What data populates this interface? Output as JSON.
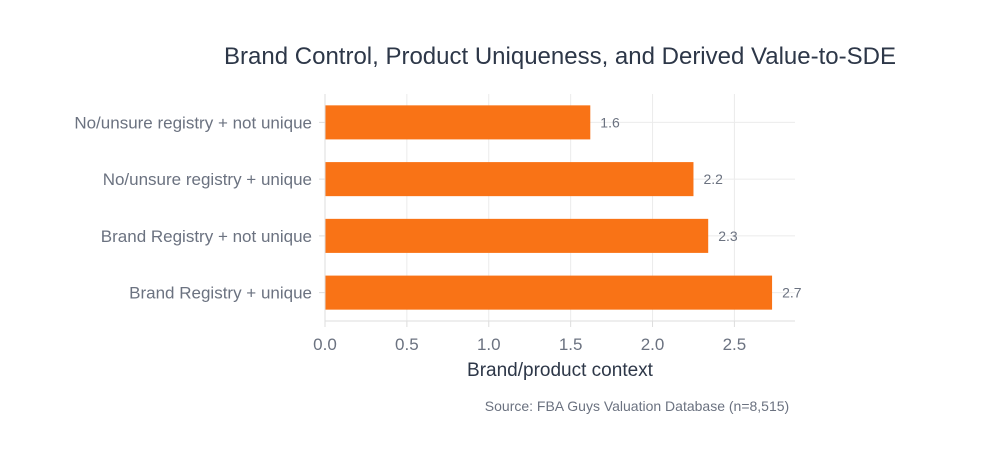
{
  "chart_data": {
    "type": "bar",
    "orientation": "horizontal",
    "title": "Brand Control, Product Uniqueness, and Derived Value-to-SDE",
    "xlabel": "Brand/product context",
    "ylabel": "",
    "categories": [
      "No/unsure registry + not unique",
      "No/unsure registry + unique",
      "Brand Registry + not unique",
      "Brand Registry + unique"
    ],
    "values": [
      1.62,
      2.25,
      2.34,
      2.73
    ],
    "data_labels": [
      "1.6",
      "2.2",
      "2.3",
      "2.7"
    ],
    "xlim": [
      0,
      2.87
    ],
    "xticks": [
      0,
      0.5,
      1,
      1.5,
      2,
      2.5
    ],
    "xtick_labels": [
      "0.0",
      "0.5",
      "1.0",
      "1.5",
      "2.0",
      "2.5"
    ],
    "grid": true,
    "bar_color": "#f97316",
    "source": "Source: FBA Guys Valuation Database (n=8,515)"
  }
}
